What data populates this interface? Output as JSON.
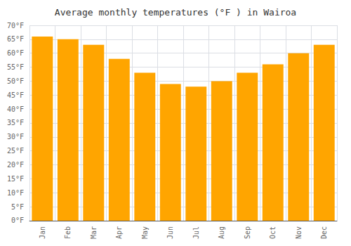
{
  "chart_data": {
    "type": "bar",
    "title": "Average monthly temperatures (°F ) in Wairoa",
    "categories": [
      "Jan",
      "Feb",
      "Mar",
      "Apr",
      "May",
      "Jun",
      "Jul",
      "Aug",
      "Sep",
      "Oct",
      "Nov",
      "Dec"
    ],
    "values": [
      66,
      65,
      63,
      58,
      53,
      49,
      48,
      50,
      53,
      56,
      60,
      63
    ],
    "color": "#FFA500",
    "ylim": [
      0,
      70
    ],
    "yticks": [
      {
        "value": 0,
        "label": "0°F"
      },
      {
        "value": 5,
        "label": "5°F"
      },
      {
        "value": 10,
        "label": "10°F"
      },
      {
        "value": 15,
        "label": "15°F"
      },
      {
        "value": 20,
        "label": "20°F"
      },
      {
        "value": 25,
        "label": "25°F"
      },
      {
        "value": 30,
        "label": "30°F"
      },
      {
        "value": 35,
        "label": "35°F"
      },
      {
        "value": 40,
        "label": "40°F"
      },
      {
        "value": 45,
        "label": "45°F"
      },
      {
        "value": 50,
        "label": "50°F"
      },
      {
        "value": 55,
        "label": "55°F"
      },
      {
        "value": 60,
        "label": "60°F"
      },
      {
        "value": 65,
        "label": "65°F"
      },
      {
        "value": 70,
        "label": "70°F"
      }
    ],
    "grid": true
  }
}
